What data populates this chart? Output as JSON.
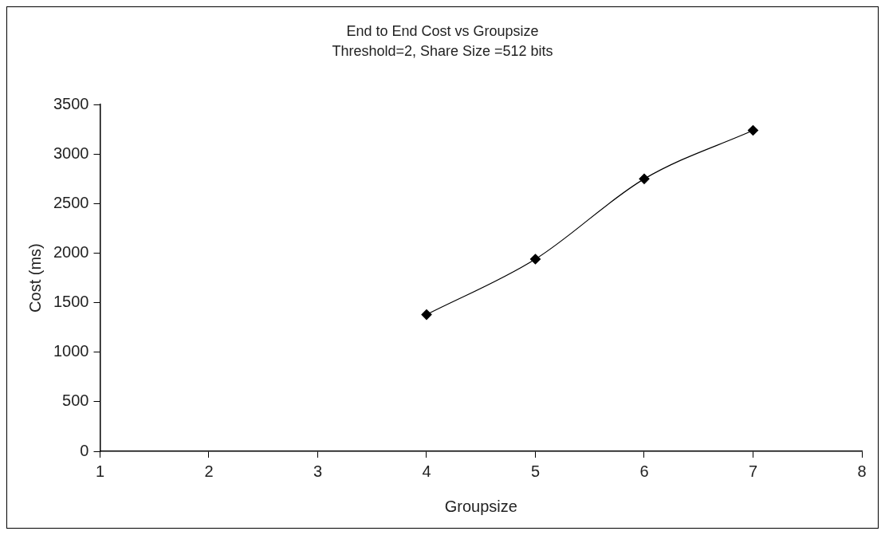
{
  "chart_data": {
    "type": "line",
    "title": "End to End Cost vs Groupsize",
    "subtitle": "Threshold=2, Share Size =512 bits",
    "xlabel": "Groupsize",
    "ylabel": "Cost (ms)",
    "x": [
      4,
      5,
      6,
      7
    ],
    "series": [
      {
        "color": "#000000",
        "values": [
          1380,
          1940,
          2750,
          3240
        ]
      }
    ],
    "xlim": [
      1,
      8
    ],
    "xticks": [
      1,
      2,
      3,
      4,
      5,
      6,
      7,
      8
    ],
    "ylim": [
      0,
      3500
    ],
    "yticks": [
      0,
      500,
      1000,
      1500,
      2000,
      2500,
      3000,
      3500
    ],
    "grid": false,
    "legend": false,
    "marker": "diamond",
    "line_style": "solid"
  }
}
